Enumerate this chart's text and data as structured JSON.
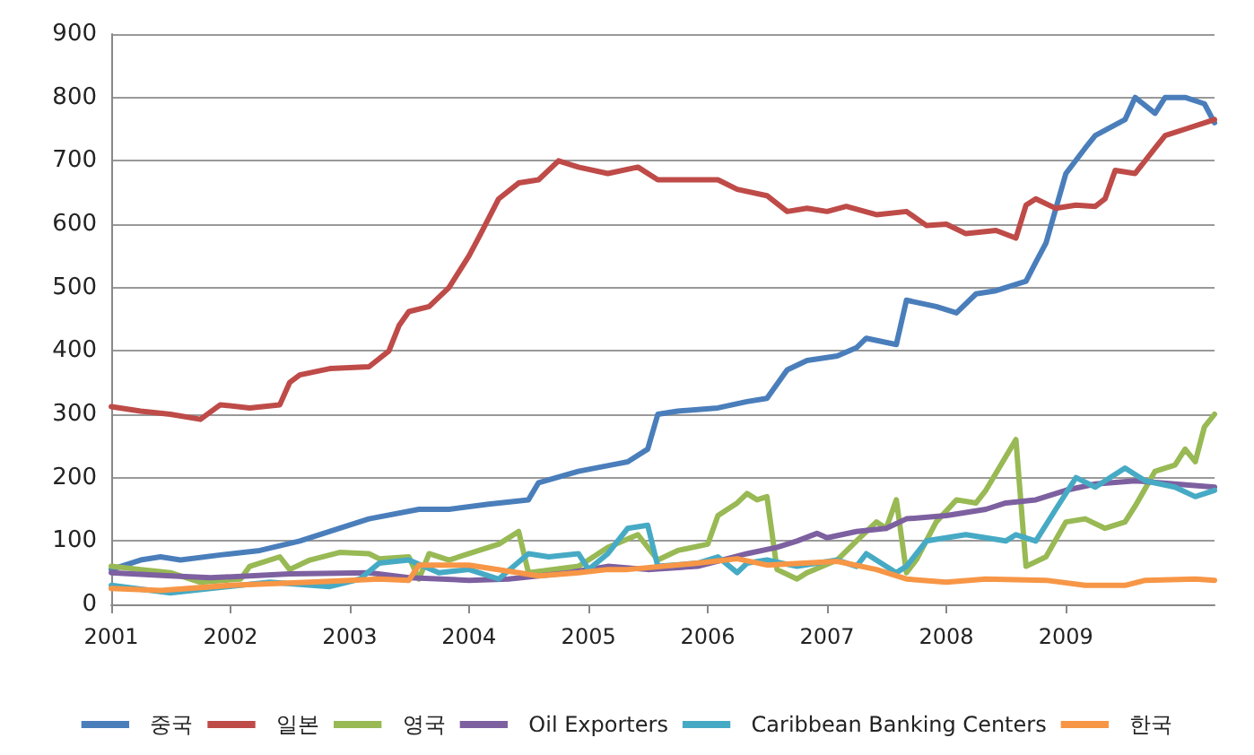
{
  "chart_data": {
    "type": "line",
    "xlim": [
      "2001-01",
      "2010-04"
    ],
    "xticks": [
      "2001",
      "2002",
      "2003",
      "2004",
      "2005",
      "2006",
      "2007",
      "2008",
      "2009"
    ],
    "ylim": [
      0,
      900
    ],
    "yticks": [
      0,
      100,
      200,
      300,
      400,
      500,
      600,
      700,
      800,
      900
    ],
    "grid": "y",
    "legend": "bottom",
    "marker": "none",
    "line_style": "solid",
    "series": [
      {
        "name": "중국",
        "color": "#4a7ebb",
        "x": [
          "2001-01",
          "2001-04",
          "2001-06",
          "2001-08",
          "2001-12",
          "2002-04",
          "2002-08",
          "2002-12",
          "2003-03",
          "2003-08",
          "2003-11",
          "2004-03",
          "2004-07",
          "2004-08",
          "2004-12",
          "2005-04",
          "2005-05",
          "2005-07",
          "2005-08",
          "2005-10",
          "2006-02",
          "2006-05",
          "2006-07",
          "2006-09",
          "2006-11",
          "2007-02",
          "2007-04",
          "2007-05",
          "2007-08",
          "2007-09",
          "2007-12",
          "2008-02",
          "2008-04",
          "2008-06",
          "2008-09",
          "2008-10",
          "2008-11",
          "2009-01",
          "2009-03",
          "2009-04",
          "2009-07",
          "2009-08",
          "2009-10",
          "2009-11",
          "2010-01",
          "2010-03",
          "2010-04"
        ],
        "values": [
          55,
          70,
          75,
          70,
          78,
          85,
          100,
          120,
          135,
          150,
          150,
          158,
          165,
          192,
          210,
          222,
          225,
          245,
          300,
          305,
          310,
          320,
          325,
          370,
          385,
          392,
          405,
          420,
          410,
          480,
          470,
          460,
          490,
          495,
          510,
          540,
          570,
          680,
          720,
          740,
          765,
          800,
          775,
          800,
          800,
          790,
          760
        ]
      },
      {
        "name": "일본",
        "color": "#be4b48",
        "x": [
          "2001-01",
          "2001-04",
          "2001-07",
          "2001-10",
          "2001-12",
          "2002-03",
          "2002-06",
          "2002-07",
          "2002-08",
          "2002-11",
          "2003-03",
          "2003-05",
          "2003-06",
          "2003-07",
          "2003-09",
          "2003-11",
          "2004-01",
          "2004-02",
          "2004-04",
          "2004-06",
          "2004-08",
          "2004-10",
          "2004-12",
          "2005-03",
          "2005-06",
          "2005-08",
          "2006-02",
          "2006-04",
          "2006-07",
          "2006-09",
          "2006-11",
          "2007-01",
          "2007-03",
          "2007-06",
          "2007-09",
          "2007-11",
          "2008-01",
          "2008-03",
          "2008-06",
          "2008-08",
          "2008-09",
          "2008-10",
          "2008-12",
          "2009-02",
          "2009-04",
          "2009-05",
          "2009-06",
          "2009-08",
          "2009-10",
          "2009-11",
          "2010-01",
          "2010-04"
        ],
        "values": [
          312,
          305,
          300,
          292,
          315,
          310,
          315,
          350,
          362,
          372,
          375,
          400,
          440,
          462,
          470,
          500,
          550,
          580,
          640,
          665,
          670,
          700,
          690,
          680,
          690,
          670,
          670,
          655,
          645,
          620,
          625,
          620,
          628,
          615,
          620,
          598,
          600,
          585,
          590,
          578,
          630,
          640,
          625,
          630,
          628,
          640,
          685,
          680,
          720,
          740,
          750,
          765
        ]
      },
      {
        "name": "영국",
        "color": "#98b954",
        "x": [
          "2001-01",
          "2001-04",
          "2001-07",
          "2001-10",
          "2002-02",
          "2002-03",
          "2002-06",
          "2002-07",
          "2002-09",
          "2002-12",
          "2003-03",
          "2003-04",
          "2003-07",
          "2003-08",
          "2003-09",
          "2003-11",
          "2004-01",
          "2004-04",
          "2004-06",
          "2004-07",
          "2004-12",
          "2005-01",
          "2005-03",
          "2005-06",
          "2005-08",
          "2005-10",
          "2006-01",
          "2006-02",
          "2006-04",
          "2006-05",
          "2006-06",
          "2006-07",
          "2006-08",
          "2006-10",
          "2006-11",
          "2007-02",
          "2007-04",
          "2007-06",
          "2007-07",
          "2007-08",
          "2007-09",
          "2007-10",
          "2007-12",
          "2008-02",
          "2008-04",
          "2008-05",
          "2008-08",
          "2008-09",
          "2008-11",
          "2009-01",
          "2009-03",
          "2009-05",
          "2009-07",
          "2009-08",
          "2009-10",
          "2009-12",
          "2010-01",
          "2010-02",
          "2010-03",
          "2010-04"
        ],
        "values": [
          60,
          55,
          50,
          35,
          40,
          60,
          75,
          55,
          70,
          82,
          80,
          72,
          75,
          40,
          80,
          70,
          80,
          95,
          115,
          50,
          60,
          70,
          90,
          110,
          70,
          85,
          95,
          140,
          160,
          175,
          165,
          170,
          55,
          40,
          50,
          70,
          100,
          130,
          120,
          165,
          50,
          70,
          130,
          165,
          160,
          180,
          260,
          60,
          75,
          130,
          135,
          120,
          130,
          155,
          210,
          220,
          245,
          225,
          280,
          300
        ]
      },
      {
        "name": "Oil Exporters",
        "color": "#7d60a0",
        "x": [
          "2001-01",
          "2001-07",
          "2001-11",
          "2002-07",
          "2003-03",
          "2003-07",
          "2004-01",
          "2004-05",
          "2004-11",
          "2005-03",
          "2005-07",
          "2005-12",
          "2006-05",
          "2006-08",
          "2006-10",
          "2006-12",
          "2007-01",
          "2007-04",
          "2007-07",
          "2007-09",
          "2008-01",
          "2008-05",
          "2008-07",
          "2008-10",
          "2009-01",
          "2009-04",
          "2009-08",
          "2009-12",
          "2010-04"
        ],
        "values": [
          50,
          45,
          42,
          48,
          50,
          42,
          38,
          40,
          50,
          60,
          55,
          60,
          80,
          90,
          100,
          112,
          105,
          115,
          120,
          135,
          140,
          150,
          160,
          165,
          180,
          190,
          195,
          190,
          185
        ]
      },
      {
        "name": "Caribbean Banking Centers",
        "color": "#46aac5",
        "x": [
          "2001-01",
          "2001-07",
          "2001-11",
          "2002-05",
          "2002-11",
          "2003-02",
          "2003-04",
          "2003-07",
          "2003-10",
          "2004-01",
          "2004-04",
          "2004-07",
          "2004-09",
          "2004-12",
          "2005-01",
          "2005-03",
          "2005-05",
          "2005-07",
          "2005-08",
          "2005-12",
          "2006-02",
          "2006-04",
          "2006-05",
          "2006-07",
          "2006-10",
          "2007-02",
          "2007-04",
          "2007-05",
          "2007-08",
          "2007-09",
          "2007-11",
          "2008-03",
          "2008-07",
          "2008-08",
          "2008-10",
          "2008-12",
          "2009-02",
          "2009-04",
          "2009-07",
          "2009-09",
          "2009-12",
          "2010-02",
          "2010-04"
        ],
        "values": [
          30,
          18,
          25,
          35,
          28,
          40,
          65,
          70,
          50,
          55,
          40,
          80,
          75,
          80,
          55,
          80,
          120,
          125,
          60,
          65,
          75,
          50,
          65,
          70,
          60,
          70,
          60,
          80,
          50,
          60,
          100,
          110,
          100,
          110,
          100,
          150,
          200,
          185,
          215,
          195,
          185,
          170,
          180
        ]
      },
      {
        "name": "한국",
        "color": "#f79646",
        "x": [
          "2001-01",
          "2001-06",
          "2002-01",
          "2002-09",
          "2003-04",
          "2003-07",
          "2003-08",
          "2004-01",
          "2004-06",
          "2004-08",
          "2004-12",
          "2005-03",
          "2005-05",
          "2005-12",
          "2006-04",
          "2006-07",
          "2007-02",
          "2007-06",
          "2007-09",
          "2008-01",
          "2008-05",
          "2008-11",
          "2009-03",
          "2009-07",
          "2009-09",
          "2010-02",
          "2010-04"
        ],
        "values": [
          25,
          22,
          30,
          35,
          40,
          38,
          62,
          62,
          50,
          45,
          50,
          55,
          55,
          65,
          72,
          62,
          68,
          55,
          40,
          35,
          40,
          38,
          30,
          30,
          38,
          40,
          38
        ]
      }
    ]
  }
}
